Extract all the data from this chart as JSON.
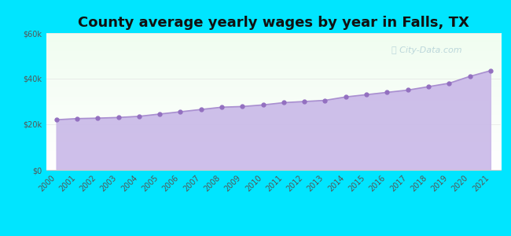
{
  "title": "County average yearly wages by year in Falls, TX",
  "years": [
    2000,
    2001,
    2002,
    2003,
    2004,
    2005,
    2006,
    2007,
    2008,
    2009,
    2010,
    2011,
    2012,
    2013,
    2014,
    2015,
    2016,
    2017,
    2018,
    2019,
    2020,
    2021
  ],
  "wages": [
    22000,
    22500,
    22700,
    23000,
    23500,
    24500,
    25500,
    26500,
    27500,
    27800,
    28500,
    29500,
    30000,
    30500,
    32000,
    33000,
    34000,
    35000,
    36500,
    38000,
    41000,
    43500
  ],
  "ylim": [
    0,
    60000
  ],
  "yticks": [
    0,
    20000,
    40000,
    60000
  ],
  "ytick_labels": [
    "$0",
    "$20k",
    "$40k",
    "$60k"
  ],
  "background_outer": "#00e5ff",
  "background_inner_top": "#f0fdf0",
  "background_inner_bottom": "#ffffff",
  "fill_color": "#c9b8e8",
  "fill_alpha": 0.9,
  "line_color": "#a98fd0",
  "marker_color": "#9370c0",
  "marker_size": 3.5,
  "line_width": 1.2,
  "title_fontsize": 13,
  "watermark_text": "City-Data.com",
  "watermark_color": "#90b8c8",
  "watermark_alpha": 0.55,
  "grid_color": "#dddddd",
  "grid_alpha": 0.6,
  "tick_label_color": "#555555",
  "tick_fontsize": 7.0
}
